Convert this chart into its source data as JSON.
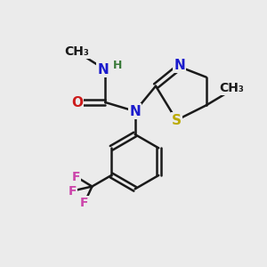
{
  "bg_color": "#ebebeb",
  "bond_color": "#1a1a1a",
  "bond_width": 1.8,
  "atom_colors": {
    "N": "#1a1acc",
    "H": "#3a7a3a",
    "O": "#cc1a1a",
    "S": "#bbaa00",
    "F": "#cc44aa",
    "C": "#1a1a1a"
  },
  "font_size": 10,
  "font_size_atom": 11
}
